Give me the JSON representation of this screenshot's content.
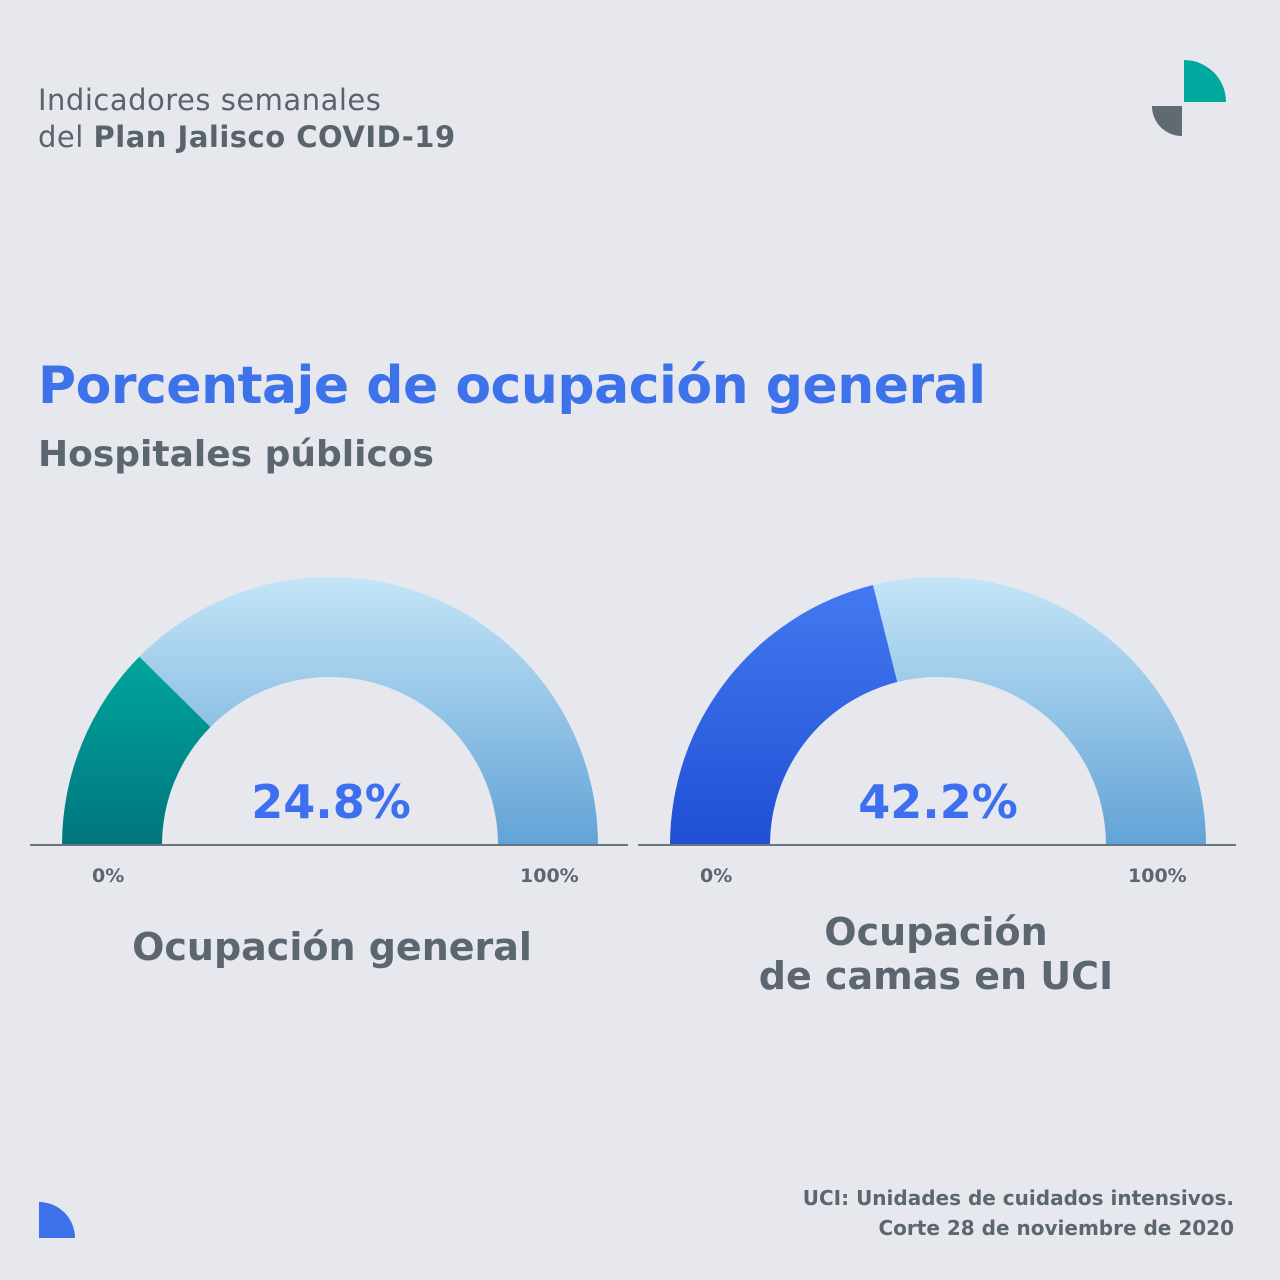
{
  "header": {
    "line1": "Indicadores semanales",
    "line2_prefix": "del ",
    "line2_bold": "Plan Jalisco COVID-19"
  },
  "title": "Porcentaje de ocupación general",
  "subtitle": "Hospitales públicos",
  "colors": {
    "teal": "#009e97",
    "blue": "#3d72ea",
    "light_blue": "#bde0f5",
    "gray_text": "#5b6670",
    "logo_gray": "#59636b"
  },
  "chart_data": [
    {
      "type": "gauge",
      "label": "Ocupación general",
      "value": 24.8,
      "value_label": "24.8%",
      "min_label": "0%",
      "max_label": "100%",
      "range": [
        0,
        100
      ],
      "fill_color": "#009e97"
    },
    {
      "type": "gauge",
      "label": "Ocupación de camas en UCI",
      "label_lines": [
        "Ocupación",
        "de camas en UCI"
      ],
      "value": 42.2,
      "value_label": "42.2%",
      "min_label": "0%",
      "max_label": "100%",
      "range": [
        0,
        100
      ],
      "fill_color": "#3d72ea"
    }
  ],
  "footnotes": {
    "line1": "UCI: Unidades de cuidados intensivos.",
    "line2": "Corte 28 de noviembre de 2020"
  }
}
